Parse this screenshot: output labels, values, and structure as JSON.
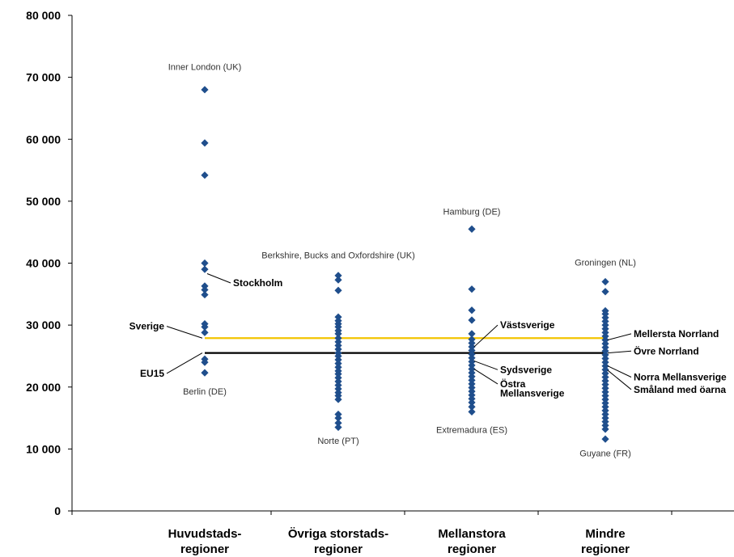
{
  "chart_data": {
    "type": "scatter",
    "ylim": [
      0,
      80000
    ],
    "yticks": [
      {
        "value": 0,
        "label": "0"
      },
      {
        "value": 10000,
        "label": "10 000"
      },
      {
        "value": 20000,
        "label": "20 000"
      },
      {
        "value": 30000,
        "label": "30 000"
      },
      {
        "value": 40000,
        "label": "40 000"
      },
      {
        "value": 50000,
        "label": "50 000"
      },
      {
        "value": 60000,
        "label": "60 000"
      },
      {
        "value": 70000,
        "label": "70 000"
      },
      {
        "value": 80000,
        "label": "80 000"
      }
    ],
    "categories": [
      [
        "Huvudstads-",
        "regioner"
      ],
      [
        "Övriga storstads-",
        "regioner"
      ],
      [
        "Mellanstora",
        "regioner"
      ],
      [
        "Mindre",
        "regioner"
      ]
    ],
    "series": [
      {
        "values": [
          [
            0,
            68000
          ],
          [
            0,
            59400
          ],
          [
            0,
            54200
          ],
          [
            0,
            40000
          ],
          [
            0,
            39000
          ],
          [
            0,
            36300
          ],
          [
            0,
            35700
          ],
          [
            0,
            34900
          ],
          [
            0,
            30200
          ],
          [
            0,
            29700
          ],
          [
            0,
            28800
          ],
          [
            0,
            24500
          ],
          [
            0,
            24000
          ],
          [
            0,
            22300
          ]
        ]
      },
      {
        "values": [
          [
            1,
            38000
          ],
          [
            1,
            37300
          ],
          [
            1,
            35600
          ],
          [
            1,
            31300
          ],
          [
            1,
            30700
          ],
          [
            1,
            30200
          ],
          [
            1,
            29700
          ],
          [
            1,
            29100
          ],
          [
            1,
            28600
          ],
          [
            1,
            27900
          ],
          [
            1,
            27300
          ],
          [
            1,
            26700
          ],
          [
            1,
            26100
          ],
          [
            1,
            25500
          ],
          [
            1,
            25000
          ],
          [
            1,
            24400
          ],
          [
            1,
            23800
          ],
          [
            1,
            23200
          ],
          [
            1,
            22600
          ],
          [
            1,
            22100
          ],
          [
            1,
            21500
          ],
          [
            1,
            20900
          ],
          [
            1,
            20300
          ],
          [
            1,
            19700
          ],
          [
            1,
            19100
          ],
          [
            1,
            18600
          ],
          [
            1,
            18000
          ],
          [
            1,
            15600
          ],
          [
            1,
            15000
          ],
          [
            1,
            14200
          ],
          [
            1,
            13500
          ]
        ]
      },
      {
        "values": [
          [
            2,
            45500
          ],
          [
            2,
            35800
          ],
          [
            2,
            32400
          ],
          [
            2,
            30800
          ],
          [
            2,
            28600
          ],
          [
            2,
            27700
          ],
          [
            2,
            27100
          ],
          [
            2,
            26500
          ],
          [
            2,
            25900
          ],
          [
            2,
            25300
          ],
          [
            2,
            24700
          ],
          [
            2,
            24100
          ],
          [
            2,
            23500
          ],
          [
            2,
            22900
          ],
          [
            2,
            22300
          ],
          [
            2,
            21700
          ],
          [
            2,
            21100
          ],
          [
            2,
            20500
          ],
          [
            2,
            19900
          ],
          [
            2,
            19300
          ],
          [
            2,
            18700
          ],
          [
            2,
            18100
          ],
          [
            2,
            17500
          ],
          [
            2,
            16800
          ],
          [
            2,
            16000
          ]
        ]
      },
      {
        "values": [
          [
            3,
            37000
          ],
          [
            3,
            35400
          ],
          [
            3,
            32300
          ],
          [
            3,
            31800
          ],
          [
            3,
            31200
          ],
          [
            3,
            30600
          ],
          [
            3,
            30000
          ],
          [
            3,
            29400
          ],
          [
            3,
            28800
          ],
          [
            3,
            28200
          ],
          [
            3,
            27600
          ],
          [
            3,
            27000
          ],
          [
            3,
            26400
          ],
          [
            3,
            25800
          ],
          [
            3,
            25200
          ],
          [
            3,
            24600
          ],
          [
            3,
            24000
          ],
          [
            3,
            23400
          ],
          [
            3,
            22800
          ],
          [
            3,
            22200
          ],
          [
            3,
            21600
          ],
          [
            3,
            21000
          ],
          [
            3,
            20400
          ],
          [
            3,
            19800
          ],
          [
            3,
            19200
          ],
          [
            3,
            18600
          ],
          [
            3,
            18000
          ],
          [
            3,
            17400
          ],
          [
            3,
            16800
          ],
          [
            3,
            16200
          ],
          [
            3,
            15600
          ],
          [
            3,
            15000
          ],
          [
            3,
            14400
          ],
          [
            3,
            13800
          ],
          [
            3,
            13200
          ],
          [
            3,
            11600
          ]
        ]
      }
    ],
    "reference_lines": [
      {
        "name": "Sverige",
        "value": 27900,
        "color": "#f2c400"
      },
      {
        "name": "EU15",
        "value": 25500,
        "color": "#000000"
      }
    ],
    "point_annotations": [
      {
        "text": "Inner London (UK)",
        "category": 0,
        "value": 71200
      },
      {
        "text": "Berlin (DE)",
        "category": 0,
        "value": 18800
      },
      {
        "text": "Berkshire, Bucks and Oxfordshire (UK)",
        "category": 1,
        "value": 40800
      },
      {
        "text": "Norte (PT)",
        "category": 1,
        "value": 10800
      },
      {
        "text": "Hamburg (DE)",
        "category": 2,
        "value": 47800
      },
      {
        "text": "Extremadura (ES)",
        "category": 2,
        "value": 12600
      },
      {
        "text": "Groningen (NL)",
        "category": 3,
        "value": 39600
      },
      {
        "text": "Guyane (FR)",
        "category": 3,
        "value": 8800
      }
    ],
    "leader_labels": [
      {
        "text": "Stockholm",
        "category": 0,
        "value": 38300,
        "label_value": 36800,
        "side": "right"
      },
      {
        "text": "Sverige",
        "category": 0,
        "value": 27900,
        "label_value": 29800,
        "side": "left"
      },
      {
        "text": "EU15",
        "category": 0,
        "value": 25500,
        "label_value": 22200,
        "side": "left"
      },
      {
        "text": "Västsverige",
        "category": 2,
        "value": 26500,
        "label_value": 30000,
        "side": "right"
      },
      {
        "text": "Sydsverige",
        "category": 2,
        "value": 24200,
        "label_value": 22800,
        "side": "right"
      },
      {
        "text": "Östra",
        "category": 2,
        "value": 22900,
        "label_value": 20500,
        "side": "right"
      },
      {
        "text": "Mellansverige",
        "category": 2,
        "value": null,
        "label_value": 19000,
        "side": "right"
      },
      {
        "text": "Mellersta Norrland",
        "category": 3,
        "value": 27600,
        "label_value": 28600,
        "side": "right"
      },
      {
        "text": "Övre Norrland",
        "category": 3,
        "value": 25500,
        "label_value": 25800,
        "side": "right"
      },
      {
        "text": "Norra Mellansverige",
        "category": 3,
        "value": 23400,
        "label_value": 21600,
        "side": "right"
      },
      {
        "text": "Småland med öarna",
        "category": 3,
        "value": 22700,
        "label_value": 19600,
        "side": "right"
      }
    ],
    "colors": {
      "marker": "#1f4e8c",
      "axis": "#000000"
    },
    "grid": false
  }
}
